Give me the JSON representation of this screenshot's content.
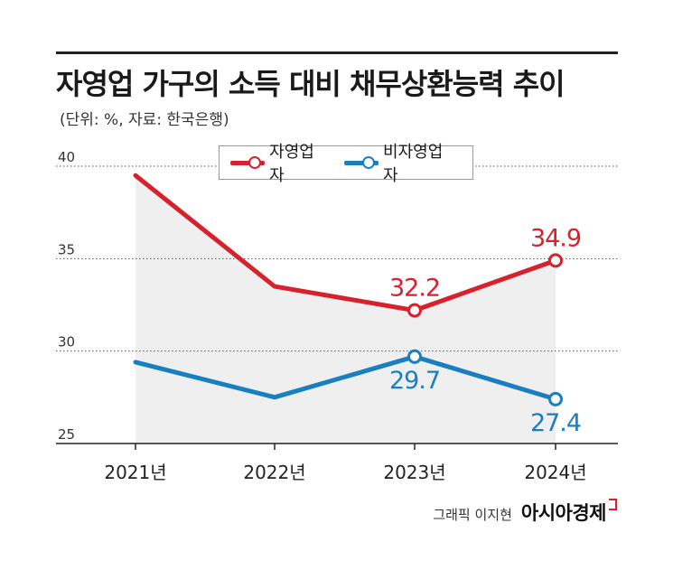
{
  "title": "자영업 가구의 소득 대비 채무상환능력 추이",
  "subtitle": "(단위: %, 자료: 한국은행)",
  "credit": {
    "text": "그래픽 이지현",
    "brand": "아시아경제"
  },
  "colors": {
    "self_employed": "#d7212c",
    "non_self_employed": "#1a7fc1",
    "area_fill": "#efefef",
    "grid": "#555555"
  },
  "chart_data": {
    "type": "line",
    "categories": [
      "2021년",
      "2022년",
      "2023년",
      "2024년"
    ],
    "series": [
      {
        "name": "자영업자",
        "values": [
          39.5,
          33.5,
          32.2,
          34.9
        ],
        "labels": [
          "",
          "",
          "32.2",
          "34.9"
        ]
      },
      {
        "name": "비자영업자",
        "values": [
          29.4,
          27.5,
          29.7,
          27.4
        ],
        "labels": [
          "",
          "",
          "29.7",
          "27.4"
        ]
      }
    ],
    "y_ticks": [
      "25",
      "30",
      "35",
      "40"
    ],
    "ylim": [
      25,
      40
    ],
    "grid": true,
    "legend_position": "top"
  }
}
